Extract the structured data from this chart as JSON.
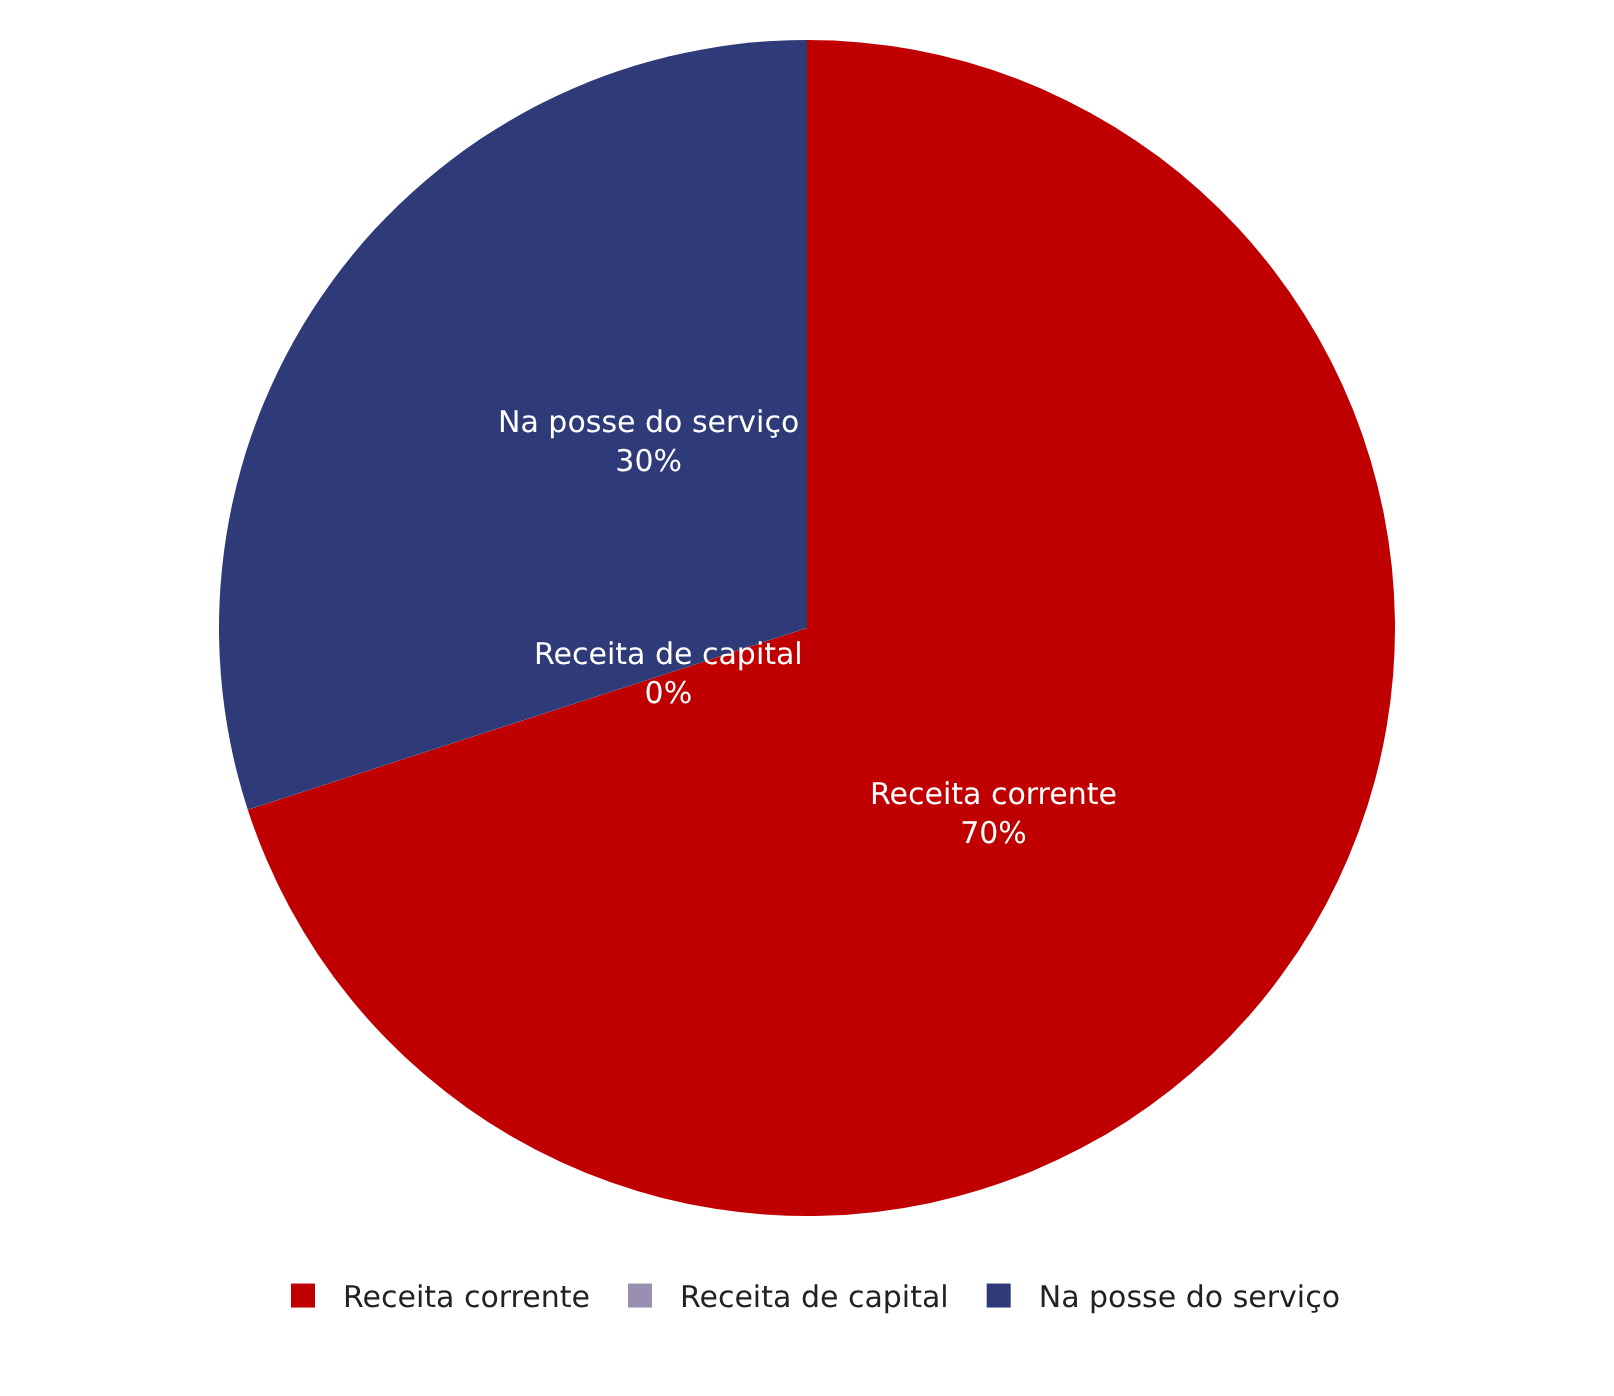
{
  "chart_data": {
    "type": "pie",
    "categories": [
      "Receita corrente",
      "Receita de capital",
      "Na posse do serviço"
    ],
    "values": [
      70,
      0,
      30
    ],
    "colors": [
      "#c00000",
      "#9a8fb0",
      "#2f3b78"
    ],
    "value_labels": [
      "70%",
      "0%",
      "30%"
    ],
    "legend": "bottom"
  }
}
